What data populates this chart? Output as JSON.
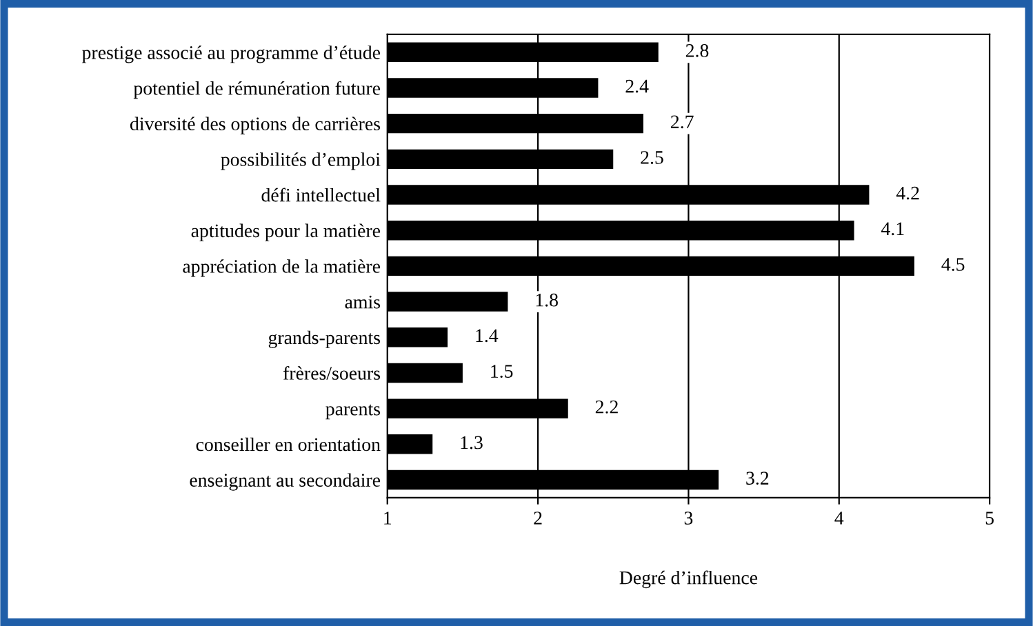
{
  "chart_data": {
    "type": "bar",
    "orientation": "horizontal",
    "xlabel": "Degré d’influence",
    "categories": [
      "prestige associé au programme d’étude",
      "potentiel de rémunération future",
      "diversité des options de carrières",
      "possibilités d’emploi",
      "défi intellectuel",
      "aptitudes pour la matière",
      "appréciation de la matière",
      "amis",
      "grands-parents",
      "frères/soeurs",
      "parents",
      "conseiller en orientation",
      "enseignant au secondaire"
    ],
    "values": [
      2.8,
      2.4,
      2.7,
      2.5,
      4.2,
      4.1,
      4.5,
      1.8,
      1.4,
      1.5,
      2.2,
      1.3,
      3.2
    ],
    "color": "#000000",
    "xlim": [
      1,
      5
    ],
    "xticks": [
      1,
      2,
      3,
      4,
      5
    ],
    "grid": "x",
    "data_labels": true
  }
}
